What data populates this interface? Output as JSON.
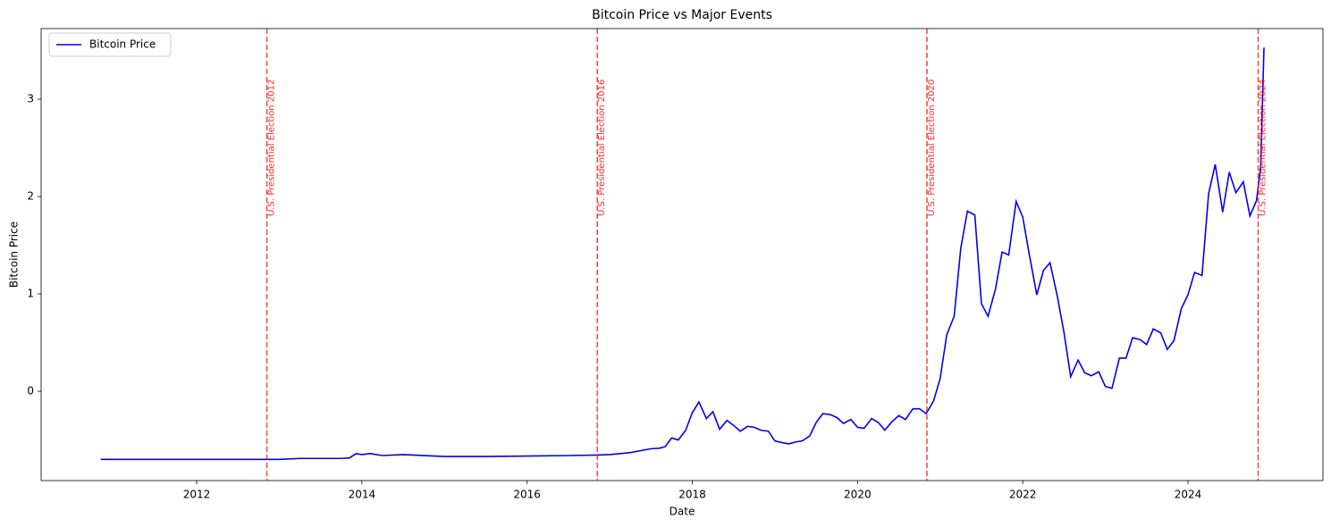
{
  "chart_data": {
    "type": "line",
    "title": "Bitcoin Price vs Major Events",
    "xlabel": "Date",
    "ylabel": "Bitcoin Price",
    "legend": "upper left",
    "x": [
      2010.84,
      2011.5,
      2012.0,
      2012.5,
      2013.0,
      2013.25,
      2013.5,
      2013.75,
      2013.85,
      2013.93,
      2014.0,
      2014.1,
      2014.25,
      2014.5,
      2015.0,
      2015.5,
      2016.0,
      2016.5,
      2016.85,
      2017.0,
      2017.25,
      2017.5,
      2017.6,
      2017.67,
      2017.75,
      2017.83,
      2017.92,
      2018.0,
      2018.08,
      2018.17,
      2018.25,
      2018.33,
      2018.42,
      2018.5,
      2018.58,
      2018.67,
      2018.75,
      2018.83,
      2018.92,
      2019.0,
      2019.1,
      2019.17,
      2019.25,
      2019.33,
      2019.42,
      2019.5,
      2019.58,
      2019.67,
      2019.75,
      2019.83,
      2019.92,
      2020.0,
      2020.08,
      2020.17,
      2020.25,
      2020.33,
      2020.42,
      2020.5,
      2020.58,
      2020.67,
      2020.75,
      2020.83,
      2020.92,
      2021.0,
      2021.08,
      2021.17,
      2021.25,
      2021.33,
      2021.42,
      2021.5,
      2021.58,
      2021.67,
      2021.75,
      2021.83,
      2021.92,
      2022.0,
      2022.08,
      2022.17,
      2022.25,
      2022.33,
      2022.42,
      2022.5,
      2022.58,
      2022.67,
      2022.75,
      2022.83,
      2022.92,
      2023.0,
      2023.08,
      2023.17,
      2023.25,
      2023.33,
      2023.42,
      2023.5,
      2023.58,
      2023.67,
      2023.75,
      2023.83,
      2023.92,
      2024.0,
      2024.08,
      2024.17,
      2024.25,
      2024.33,
      2024.42,
      2024.5,
      2024.58,
      2024.67,
      2024.75,
      2024.83,
      2024.88,
      2024.92
    ],
    "series": [
      {
        "name": "Bitcoin Price",
        "color": "#0000ee",
        "values": [
          -0.7,
          -0.7,
          -0.7,
          -0.7,
          -0.7,
          -0.69,
          -0.69,
          -0.69,
          -0.685,
          -0.64,
          -0.65,
          -0.64,
          -0.66,
          -0.65,
          -0.67,
          -0.67,
          -0.665,
          -0.66,
          -0.655,
          -0.65,
          -0.63,
          -0.59,
          -0.585,
          -0.57,
          -0.48,
          -0.5,
          -0.4,
          -0.22,
          -0.11,
          -0.28,
          -0.21,
          -0.39,
          -0.3,
          -0.35,
          -0.41,
          -0.36,
          -0.37,
          -0.4,
          -0.41,
          -0.51,
          -0.53,
          -0.54,
          -0.52,
          -0.51,
          -0.46,
          -0.32,
          -0.23,
          -0.24,
          -0.27,
          -0.33,
          -0.29,
          -0.37,
          -0.38,
          -0.28,
          -0.32,
          -0.4,
          -0.31,
          -0.25,
          -0.29,
          -0.18,
          -0.18,
          -0.23,
          -0.1,
          0.13,
          0.58,
          0.77,
          1.47,
          1.85,
          1.81,
          0.9,
          0.77,
          1.05,
          1.43,
          1.4,
          1.95,
          1.79,
          1.4,
          0.99,
          1.24,
          1.32,
          0.97,
          0.6,
          0.15,
          0.32,
          0.19,
          0.16,
          0.2,
          0.05,
          0.03,
          0.34,
          0.34,
          0.55,
          0.53,
          0.48,
          0.64,
          0.6,
          0.43,
          0.52,
          0.85,
          0.99,
          1.22,
          1.19,
          2.03,
          2.33,
          1.84,
          2.25,
          2.04,
          2.15,
          1.8,
          1.96,
          2.3,
          3.53
        ]
      }
    ],
    "events": [
      {
        "x": 2012.85,
        "label": "U.S. Presidential Election 2012"
      },
      {
        "x": 2016.85,
        "label": "U.S. Presidential Election 2016"
      },
      {
        "x": 2020.84,
        "label": "U.S. Presidential Election 2020"
      },
      {
        "x": 2024.85,
        "label": "U.S. Presidential Election 2024"
      }
    ],
    "event_color": "#ff0000",
    "xlim": [
      2010.117,
      2025.634
    ],
    "xticks": [
      2012,
      2014,
      2016,
      2018,
      2020,
      2022,
      2024
    ],
    "ylim": [
      -0.917,
      3.725
    ],
    "yticks": [
      0,
      1,
      2,
      3
    ]
  }
}
